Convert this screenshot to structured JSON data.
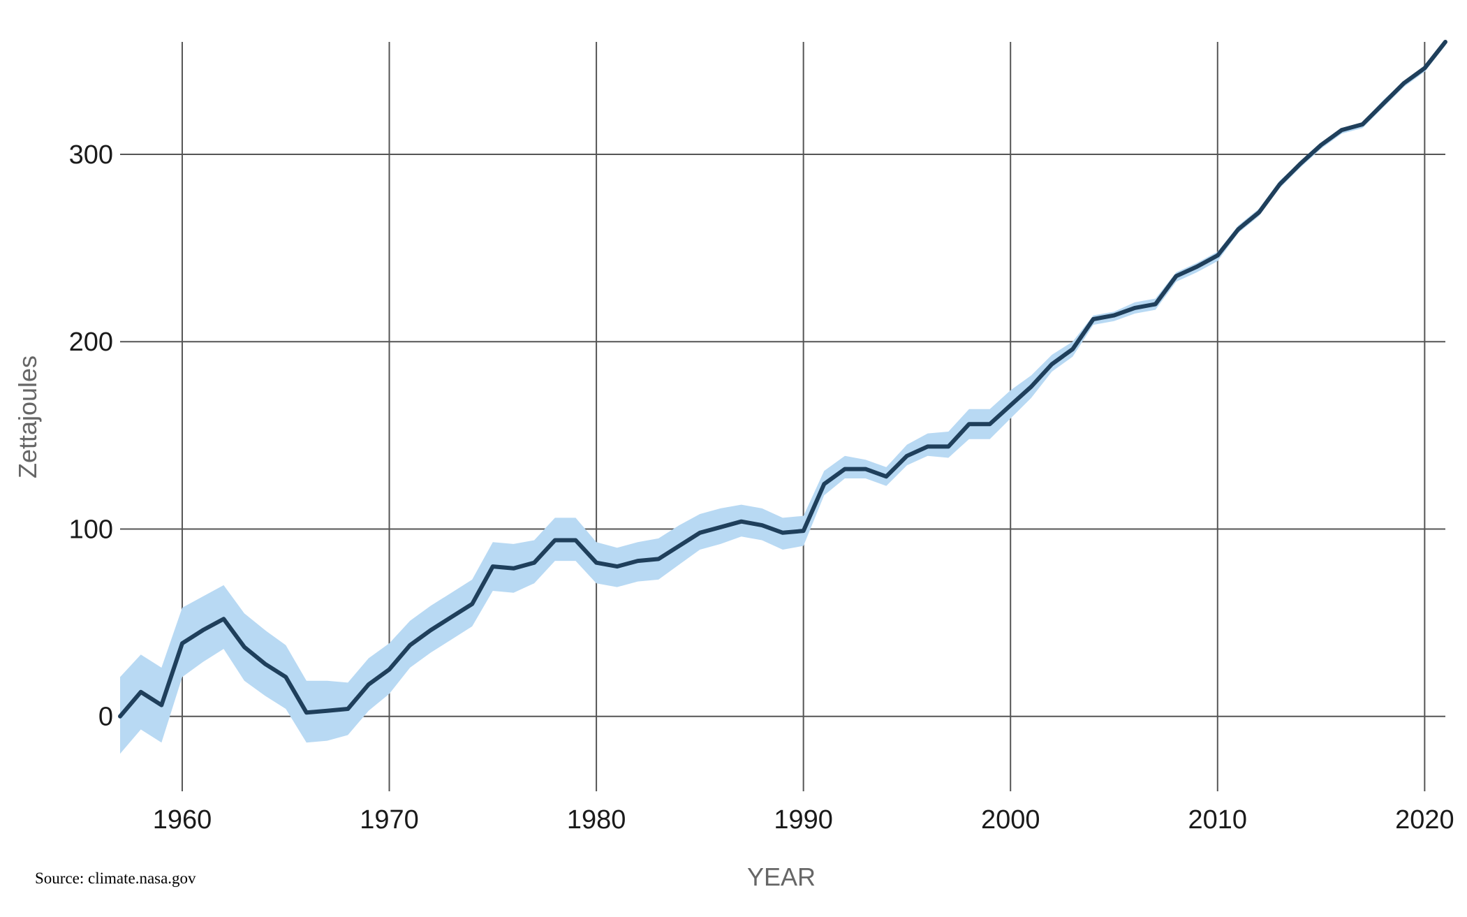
{
  "chart_data": {
    "type": "line",
    "title": "",
    "xlabel": "YEAR",
    "ylabel": "Zettajoules",
    "source": "Source: climate.nasa.gov",
    "xlim": [
      1957,
      2021
    ],
    "ylim": [
      -40,
      360
    ],
    "x_ticks": [
      1960,
      1970,
      1980,
      1990,
      2000,
      2010,
      2020
    ],
    "y_ticks": [
      0,
      100,
      200,
      300
    ],
    "grid": true,
    "colors": {
      "line": "#1f3f5b",
      "band": "#b8d9f3",
      "grid": "#555555"
    },
    "series": [
      {
        "x": [
          1957,
          1958,
          1959,
          1960,
          1961,
          1962,
          1963,
          1964,
          1965,
          1966,
          1967,
          1968,
          1969,
          1970,
          1971,
          1972,
          1973,
          1974,
          1975,
          1976,
          1977,
          1978,
          1979,
          1980,
          1981,
          1982,
          1983,
          1984,
          1985,
          1986,
          1987,
          1988,
          1989,
          1990,
          1991,
          1992,
          1993,
          1994,
          1995,
          1996,
          1997,
          1998,
          1999,
          2000,
          2001,
          2002,
          2003,
          2004,
          2005,
          2006,
          2007,
          2008,
          2009,
          2010,
          2011,
          2012,
          2013,
          2014,
          2015,
          2016,
          2017,
          2018,
          2019,
          2020,
          2021
        ],
        "y": [
          0,
          13,
          6,
          39,
          46,
          52,
          37,
          28,
          21,
          2,
          3,
          4,
          17,
          25,
          38,
          46,
          53,
          60,
          80,
          79,
          82,
          94,
          94,
          82,
          80,
          83,
          84,
          91,
          98,
          101,
          104,
          102,
          98,
          99,
          124,
          132,
          132,
          128,
          139,
          144,
          144,
          156,
          156,
          166,
          176,
          188,
          196,
          212,
          214,
          218,
          220,
          235,
          240,
          246,
          260,
          269,
          284,
          295,
          305,
          313,
          316,
          327,
          338,
          346,
          360
        ],
        "y_lower": [
          -20,
          -7,
          -14,
          21,
          29,
          36,
          19,
          11,
          4,
          -14,
          -13,
          -10,
          3,
          12,
          26,
          34,
          41,
          48,
          67,
          66,
          71,
          83,
          83,
          71,
          69,
          72,
          73,
          81,
          89,
          92,
          96,
          94,
          89,
          91,
          118,
          127,
          127,
          123,
          134,
          139,
          138,
          148,
          148,
          159,
          170,
          184,
          192,
          209,
          211,
          215,
          217,
          232,
          237,
          243,
          258,
          267,
          282,
          293,
          303,
          311,
          314,
          325,
          336,
          344,
          358
        ],
        "y_upper": [
          21,
          33,
          26,
          58,
          64,
          70,
          55,
          46,
          38,
          19,
          19,
          18,
          31,
          39,
          51,
          59,
          66,
          73,
          93,
          92,
          94,
          106,
          106,
          93,
          90,
          93,
          95,
          102,
          108,
          111,
          113,
          111,
          106,
          107,
          131,
          139,
          137,
          133,
          145,
          151,
          152,
          164,
          164,
          174,
          182,
          193,
          200,
          214,
          216,
          221,
          223,
          237,
          242,
          248,
          262,
          271,
          286,
          296,
          306,
          314,
          317,
          329,
          339,
          347,
          361
        ]
      }
    ]
  }
}
